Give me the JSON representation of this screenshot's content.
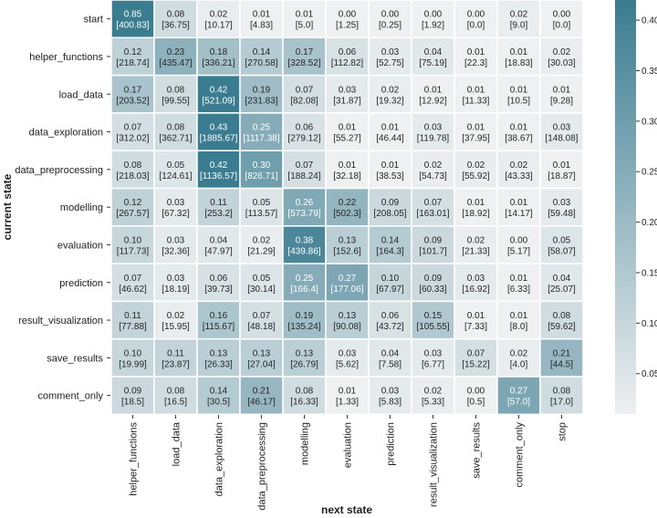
{
  "chart_data": {
    "type": "heatmap",
    "title": "",
    "xlabel": "next state",
    "ylabel": "current state",
    "rows": [
      "start",
      "helper_functions",
      "load_data",
      "data_exploration",
      "data_preprocessing",
      "modelling",
      "evaluation",
      "prediction",
      "result_visualization",
      "save_results",
      "comment_only"
    ],
    "columns": [
      "helper_functions",
      "load_data",
      "data_exploration",
      "data_preprocessing",
      "modelling",
      "evaluation",
      "prediction",
      "result_visualization",
      "save_results",
      "comment_only",
      "stop"
    ],
    "values": [
      [
        0.85,
        0.08,
        0.02,
        0.01,
        0.01,
        0.0,
        0.0,
        0.0,
        0.0,
        0.02,
        0.0
      ],
      [
        0.12,
        0.23,
        0.18,
        0.14,
        0.17,
        0.06,
        0.03,
        0.04,
        0.01,
        0.01,
        0.02
      ],
      [
        0.17,
        0.08,
        0.42,
        0.19,
        0.07,
        0.03,
        0.02,
        0.01,
        0.01,
        0.01,
        0.01
      ],
      [
        0.07,
        0.08,
        0.43,
        0.25,
        0.06,
        0.01,
        0.01,
        0.03,
        0.01,
        0.01,
        0.03
      ],
      [
        0.08,
        0.05,
        0.42,
        0.3,
        0.07,
        0.01,
        0.01,
        0.02,
        0.02,
        0.02,
        0.01
      ],
      [
        0.12,
        0.03,
        0.11,
        0.05,
        0.26,
        0.22,
        0.09,
        0.07,
        0.01,
        0.01,
        0.03
      ],
      [
        0.1,
        0.03,
        0.04,
        0.02,
        0.38,
        0.13,
        0.14,
        0.09,
        0.02,
        0.0,
        0.05
      ],
      [
        0.07,
        0.03,
        0.06,
        0.05,
        0.25,
        0.27,
        0.1,
        0.09,
        0.03,
        0.01,
        0.04
      ],
      [
        0.11,
        0.02,
        0.16,
        0.07,
        0.19,
        0.13,
        0.06,
        0.15,
        0.01,
        0.01,
        0.08
      ],
      [
        0.1,
        0.11,
        0.13,
        0.13,
        0.13,
        0.03,
        0.04,
        0.03,
        0.07,
        0.02,
        0.21
      ],
      [
        0.09,
        0.08,
        0.14,
        0.21,
        0.08,
        0.01,
        0.03,
        0.02,
        0.0,
        0.27,
        0.08
      ]
    ],
    "counts": [
      [
        "400.83",
        "36.75",
        "10.17",
        "4.83",
        "5.0",
        "1.25",
        "0.25",
        "1.92",
        "0.0",
        "9.0",
        "0.0"
      ],
      [
        "218.74",
        "435.47",
        "336.21",
        "270.58",
        "328.52",
        "112.82",
        "52.75",
        "75.19",
        "22.3",
        "18.83",
        "30.03"
      ],
      [
        "203.52",
        "99.55",
        "521.09",
        "231.83",
        "82.08",
        "31.87",
        "19.32",
        "12.92",
        "11.33",
        "10.5",
        "9.28"
      ],
      [
        "312.02",
        "362.71",
        "1885.67",
        "1117.38",
        "279.12",
        "55.27",
        "46.44",
        "119.78",
        "37.95",
        "38.67",
        "148.08"
      ],
      [
        "218.03",
        "124.61",
        "1136.57",
        "826.71",
        "188.24",
        "32.18",
        "38.53",
        "54.73",
        "55.92",
        "43.33",
        "18.87"
      ],
      [
        "267.57",
        "67.32",
        "253.2",
        "113.57",
        "573.79",
        "502.3",
        "208.05",
        "163.01",
        "18.92",
        "14.17",
        "59.48"
      ],
      [
        "117.73",
        "32.36",
        "47.97",
        "21.29",
        "439.86",
        "152.6",
        "164.3",
        "101.7",
        "21.33",
        "5.17",
        "58.07"
      ],
      [
        "46.62",
        "18.19",
        "39.73",
        "30.14",
        "166.4",
        "177.06",
        "67.97",
        "60.33",
        "16.92",
        "6.33",
        "25.07"
      ],
      [
        "77.88",
        "15.95",
        "115.67",
        "48.18",
        "135.24",
        "90.08",
        "43.72",
        "105.55",
        "7.33",
        "8.0",
        "59.62"
      ],
      [
        "19.99",
        "23.87",
        "26.33",
        "27.04",
        "26.79",
        "5.62",
        "7.58",
        "6.77",
        "15.22",
        "4.0",
        "44.5"
      ],
      [
        "18.5",
        "16.5",
        "30.5",
        "46.17",
        "16.33",
        "1.33",
        "5.83",
        "5.33",
        "0.5",
        "57.0",
        "17.0"
      ]
    ],
    "colorbar": {
      "range": [
        0.01,
        0.42
      ],
      "ticks": [
        "0.05",
        "0.10",
        "0.15",
        "0.20",
        "0.25",
        "0.30",
        "0.35",
        "0.40"
      ]
    },
    "colors": {
      "low": "#eef0f1",
      "high": "#3a7c90"
    },
    "grid": false,
    "legend": "colorbar-right"
  }
}
